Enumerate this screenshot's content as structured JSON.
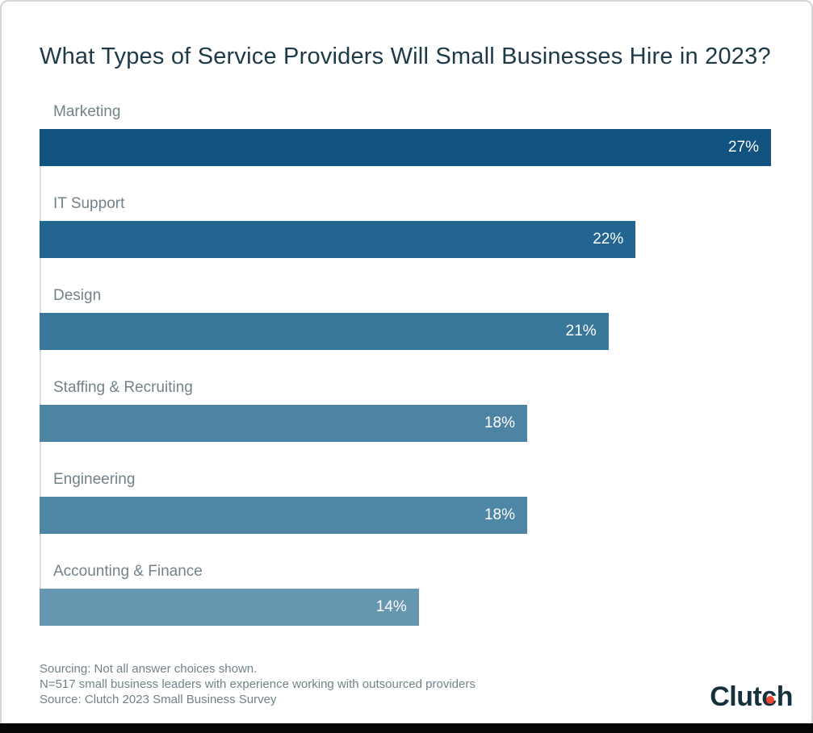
{
  "page": {
    "title": "What Types of Service Providers Will Small Businesses Hire in 2023?"
  },
  "chart_data": {
    "type": "bar",
    "orientation": "horizontal",
    "title": "What Types of Service Providers Will Small Businesses Hire in 2023?",
    "categories": [
      "Marketing",
      "IT Support",
      "Design",
      "Staffing & Recruiting",
      "Engineering",
      "Accounting & Finance"
    ],
    "values": [
      27,
      22,
      21,
      18,
      18,
      14
    ],
    "value_labels": [
      "27%",
      "22%",
      "21%",
      "18%",
      "18%",
      "14%"
    ],
    "bar_colors": [
      "#115380",
      "#226590",
      "#38769A",
      "#4D84A4",
      "#4E86A6",
      "#6697B1"
    ],
    "xlim": [
      0,
      27
    ],
    "grid": false,
    "legend": false,
    "value_label_position": "inside-end",
    "value_label_color": "#FFFFFF"
  },
  "footer": {
    "lines": [
      "Sourcing: Not all answer choices shown.",
      "N=517 small business leaders with experience working with outsourced providers",
      "Source: Clutch 2023 Small Business Survey"
    ]
  },
  "brand": {
    "logo_part1": "Clut",
    "logo_c": "c",
    "logo_part2": "h",
    "logo_text_color": "#16313E",
    "logo_dot_color": "#F4442E"
  }
}
